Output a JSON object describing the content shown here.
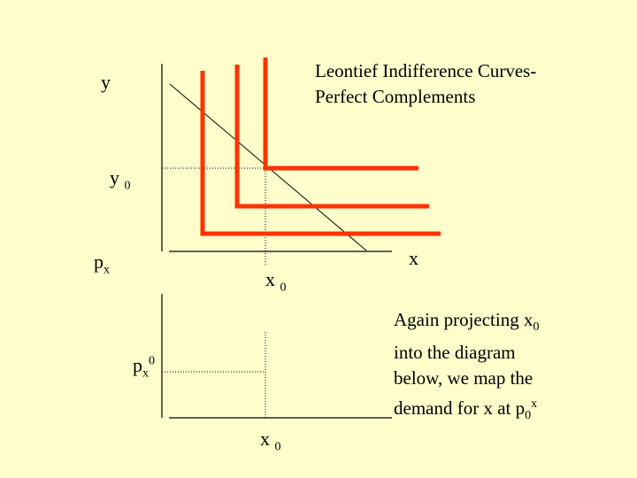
{
  "title": {
    "line1": "Leontief Indifference Curves-",
    "line2": "Perfect Complements"
  },
  "labels": {
    "y_axis": "y",
    "y0_base": "y",
    "y0_sub": "0",
    "x_axis": "x",
    "x0_upper_base": "x",
    "x0_upper_sub": "0",
    "px_axis_base": "p",
    "px_axis_sub": "x",
    "px0_base": "p",
    "px0_sub": "x",
    "px0_sup": "0",
    "x0_lower_base": "x",
    "x0_lower_sub": "0"
  },
  "note": {
    "line1_text": "Again projecting x",
    "line1_sub": "0",
    "line2": "into the diagram",
    "line3": "below, we map the",
    "line4_text": "demand for x at p",
    "line4_sub": "0",
    "line4_sup": "x"
  },
  "colors": {
    "background": "#ffffcc",
    "indifference_curves": "#ff3300",
    "axes": "#000000"
  }
}
